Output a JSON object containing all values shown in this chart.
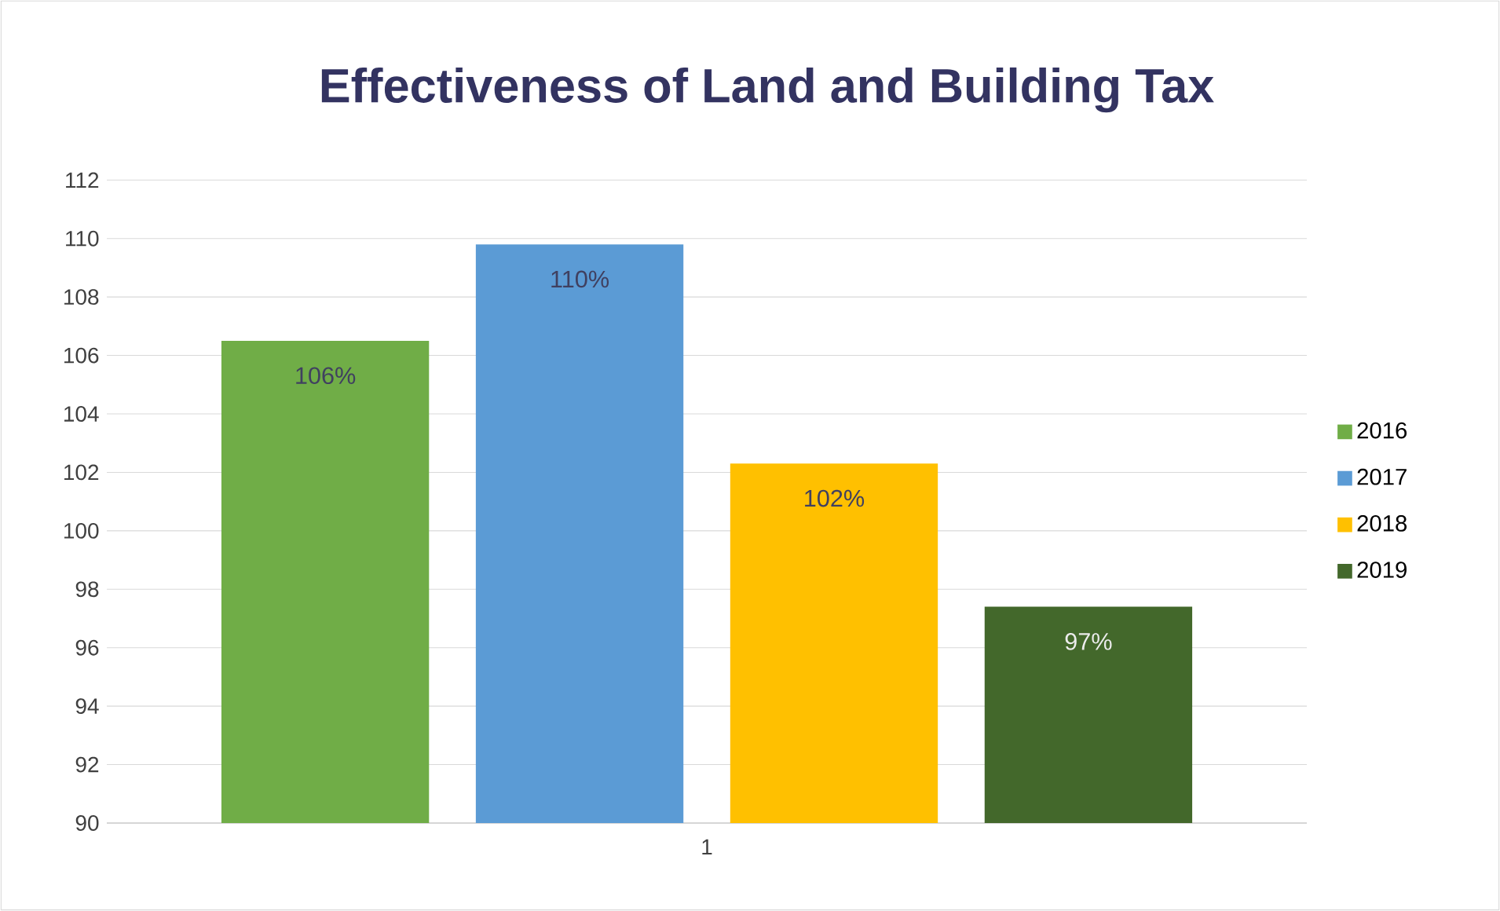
{
  "chart_data": {
    "type": "bar",
    "title": "Effectiveness of Land and Building Tax",
    "categories": [
      "1"
    ],
    "series": [
      {
        "name": "2016",
        "color": "#70ad47",
        "values": [
          106.5
        ],
        "value_labels": [
          "106%"
        ]
      },
      {
        "name": "2017",
        "color": "#5b9bd5",
        "values": [
          109.8
        ],
        "value_labels": [
          "110%"
        ]
      },
      {
        "name": "2018",
        "color": "#ffc000",
        "values": [
          102.3
        ],
        "value_labels": [
          "102%"
        ]
      },
      {
        "name": "2019",
        "color": "#43682b",
        "values": [
          97.4
        ],
        "value_labels": [
          "97%"
        ]
      }
    ],
    "ylim": [
      90,
      112
    ],
    "yticks": [
      90,
      92,
      94,
      96,
      98,
      100,
      102,
      104,
      106,
      108,
      110,
      112
    ],
    "grid": "y",
    "legend": "right"
  }
}
